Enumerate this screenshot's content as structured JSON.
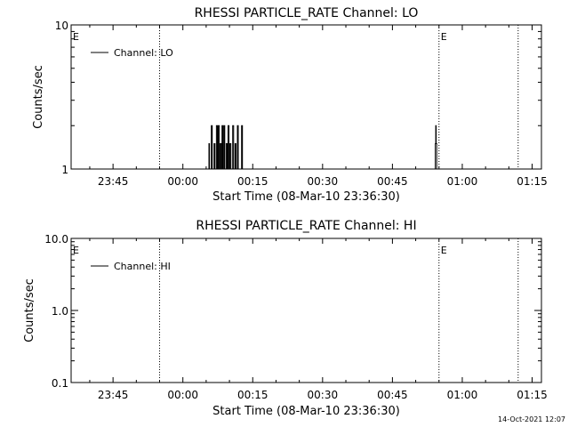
{
  "chart_data": [
    {
      "type": "line",
      "title": "RHESSI PARTICLE_RATE Channel: LO",
      "xlabel": "Start Time (08-Mar-10 23:36:30)",
      "ylabel": "Counts/sec",
      "yscale": "log",
      "ylim": [
        1,
        10
      ],
      "y_ticks": [
        {
          "v": 1,
          "label": "1"
        },
        {
          "v": 10,
          "label": "10"
        }
      ],
      "x_ticks": [
        "23:45",
        "00:00",
        "00:15",
        "00:30",
        "00:45",
        "01:00",
        "01:15"
      ],
      "x_tick_minutes": [
        -15,
        0,
        15,
        30,
        45,
        60,
        75
      ],
      "xlim_minutes": [
        -24,
        77
      ],
      "grid": false,
      "legend": {
        "position": "top-left",
        "entries": [
          "Channel: LO"
        ]
      },
      "eclipse_markers": {
        "minutes": [
          -5,
          55,
          72
        ],
        "labels": [
          "E",
          "E"
        ],
        "label_minutes": [
          -24,
          55
        ]
      },
      "series": [
        {
          "name": "Channel: LO",
          "points": [
            [
              5.6,
              1
            ],
            [
              5.6,
              1.5
            ],
            [
              5.7,
              1.5
            ],
            [
              5.7,
              1
            ],
            [
              6.1,
              1
            ],
            [
              6.1,
              2
            ],
            [
              6.3,
              2
            ],
            [
              6.3,
              1
            ],
            [
              6.7,
              1
            ],
            [
              6.7,
              1.5
            ],
            [
              6.9,
              1.5
            ],
            [
              6.9,
              1
            ],
            [
              7.2,
              1
            ],
            [
              7.2,
              2
            ],
            [
              7.4,
              2
            ],
            [
              7.4,
              1
            ],
            [
              7.6,
              1
            ],
            [
              7.6,
              2
            ],
            [
              7.8,
              2
            ],
            [
              7.8,
              1
            ],
            [
              8.0,
              1
            ],
            [
              8.0,
              1.5
            ],
            [
              8.2,
              1.5
            ],
            [
              8.2,
              1
            ],
            [
              8.4,
              1
            ],
            [
              8.4,
              2
            ],
            [
              8.6,
              2
            ],
            [
              8.6,
              1
            ],
            [
              8.8,
              1
            ],
            [
              8.8,
              2
            ],
            [
              9.0,
              2
            ],
            [
              9.0,
              1
            ],
            [
              9.3,
              1
            ],
            [
              9.3,
              1.5
            ],
            [
              9.5,
              1.5
            ],
            [
              9.5,
              1
            ],
            [
              9.7,
              1
            ],
            [
              9.7,
              2
            ],
            [
              9.9,
              2
            ],
            [
              9.9,
              1
            ],
            [
              10.1,
              1
            ],
            [
              10.1,
              1.5
            ],
            [
              10.3,
              1.5
            ],
            [
              10.3,
              1
            ],
            [
              10.7,
              1
            ],
            [
              10.7,
              2
            ],
            [
              10.9,
              2
            ],
            [
              10.9,
              1
            ],
            [
              11.2,
              1
            ],
            [
              11.2,
              1.5
            ],
            [
              11.4,
              1.5
            ],
            [
              11.4,
              1
            ],
            [
              11.7,
              1
            ],
            [
              11.7,
              2
            ],
            [
              11.9,
              2
            ],
            [
              11.9,
              1
            ],
            [
              12.6,
              1
            ],
            [
              12.6,
              2
            ],
            [
              12.8,
              2
            ],
            [
              12.8,
              1
            ],
            [
              54.2,
              1
            ],
            [
              54.2,
              1.5
            ],
            [
              54.3,
              1.5
            ],
            [
              54.3,
              2
            ],
            [
              54.4,
              2
            ],
            [
              54.4,
              1.5
            ],
            [
              54.5,
              1.5
            ],
            [
              54.5,
              1
            ]
          ]
        }
      ]
    },
    {
      "type": "line",
      "title": "RHESSI PARTICLE_RATE Channel: HI",
      "xlabel": "Start Time (08-Mar-10 23:36:30)",
      "ylabel": "Counts/sec",
      "yscale": "log",
      "ylim": [
        0.1,
        10
      ],
      "y_ticks": [
        {
          "v": 0.1,
          "label": "0.1"
        },
        {
          "v": 1,
          "label": "1.0"
        },
        {
          "v": 10,
          "label": "10.0"
        }
      ],
      "x_ticks": [
        "23:45",
        "00:00",
        "00:15",
        "00:30",
        "00:45",
        "01:00",
        "01:15"
      ],
      "x_tick_minutes": [
        -15,
        0,
        15,
        30,
        45,
        60,
        75
      ],
      "xlim_minutes": [
        -24,
        77
      ],
      "grid": false,
      "legend": {
        "position": "top-left",
        "entries": [
          "Channel: HI"
        ]
      },
      "eclipse_markers": {
        "minutes": [
          -5,
          55,
          72
        ],
        "labels": [
          "E",
          "E"
        ],
        "label_minutes": [
          -24,
          55
        ]
      },
      "series": [
        {
          "name": "Channel: HI",
          "points": []
        }
      ]
    }
  ],
  "footer": {
    "timestamp": "14-Oct-2021 12:07"
  }
}
